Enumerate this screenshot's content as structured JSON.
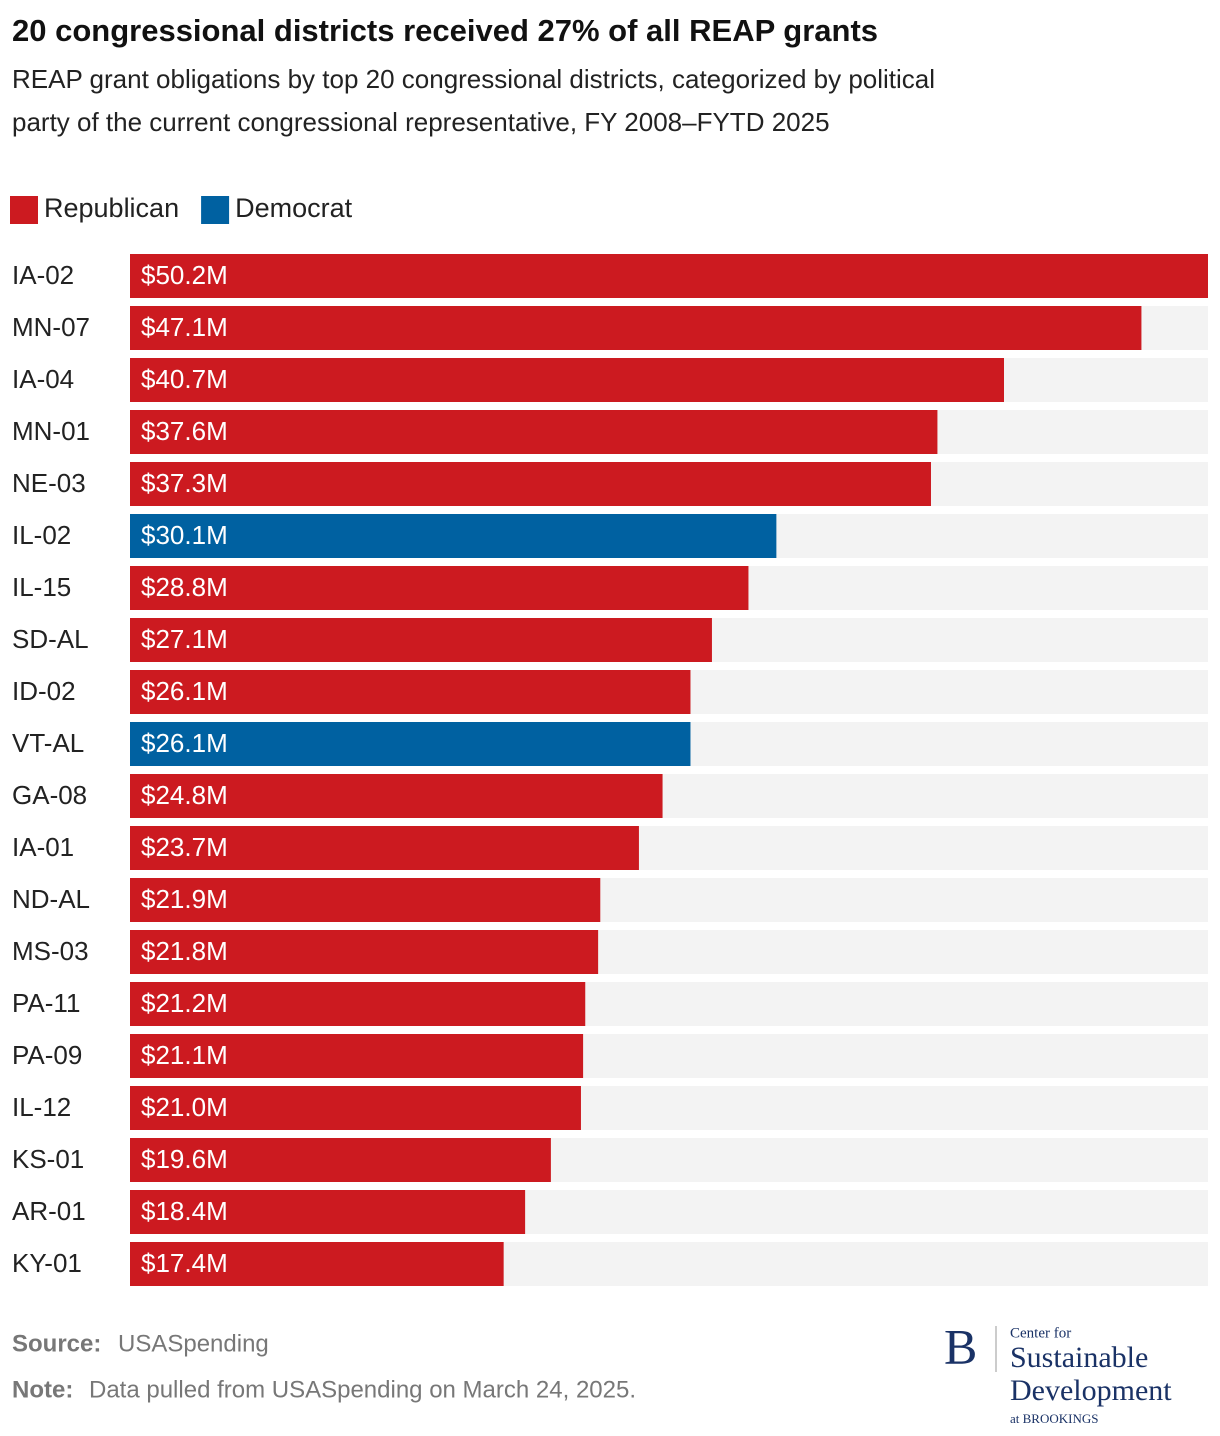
{
  "chart_data": {
    "type": "bar",
    "orientation": "horizontal",
    "title": "20 congressional districts received 27% of all REAP grants",
    "subtitle": [
      "REAP grant obligations by top 20 congressional districts, categorized by political",
      "party of the current congressional representative, FY 2008–FYTD 2025"
    ],
    "categories": [
      "IA-02",
      "MN-07",
      "IA-04",
      "MN-01",
      "NE-03",
      "IL-02",
      "IL-15",
      "SD-AL",
      "ID-02",
      "VT-AL",
      "GA-08",
      "IA-01",
      "ND-AL",
      "MS-03",
      "PA-11",
      "PA-09",
      "IL-12",
      "KS-01",
      "AR-01",
      "KY-01"
    ],
    "series": [
      {
        "name": "Republican",
        "color": "#cc1a20",
        "values": [
          50.2,
          47.1,
          40.7,
          37.6,
          37.3,
          null,
          28.8,
          27.1,
          26.1,
          null,
          24.8,
          23.7,
          21.9,
          21.8,
          21.2,
          21.1,
          21.0,
          19.6,
          18.4,
          17.4
        ],
        "value_labels": [
          "$50.2M",
          "$47.1M",
          "$40.7M",
          "$37.6M",
          "$37.3M",
          null,
          "$28.8M",
          "$27.1M",
          "$26.1M",
          null,
          "$24.8M",
          "$23.7M",
          "$21.9M",
          "$21.8M",
          "$21.2M",
          "$21.1M",
          "$21.0M",
          "$19.6M",
          "$18.4M",
          "$17.4M"
        ]
      },
      {
        "name": "Democrat",
        "color": "#0061a1",
        "values": [
          null,
          null,
          null,
          null,
          null,
          30.1,
          null,
          null,
          null,
          26.1,
          null,
          null,
          null,
          null,
          null,
          null,
          null,
          null,
          null,
          null
        ],
        "value_labels": [
          null,
          null,
          null,
          null,
          null,
          "$30.1M",
          null,
          null,
          null,
          "$26.1M",
          null,
          null,
          null,
          null,
          null,
          null,
          null,
          null,
          null,
          null
        ]
      }
    ],
    "xlim": [
      0,
      50.2
    ],
    "legend": "top-left",
    "source_label": "Source:",
    "source": "USASpending",
    "note_label": "Note:",
    "note": "Data pulled from USASpending on March 24, 2025.",
    "logo": {
      "mark": "B",
      "lines": [
        "Center for",
        "Sustainable",
        "Development",
        "at BROOKINGS"
      ]
    }
  }
}
